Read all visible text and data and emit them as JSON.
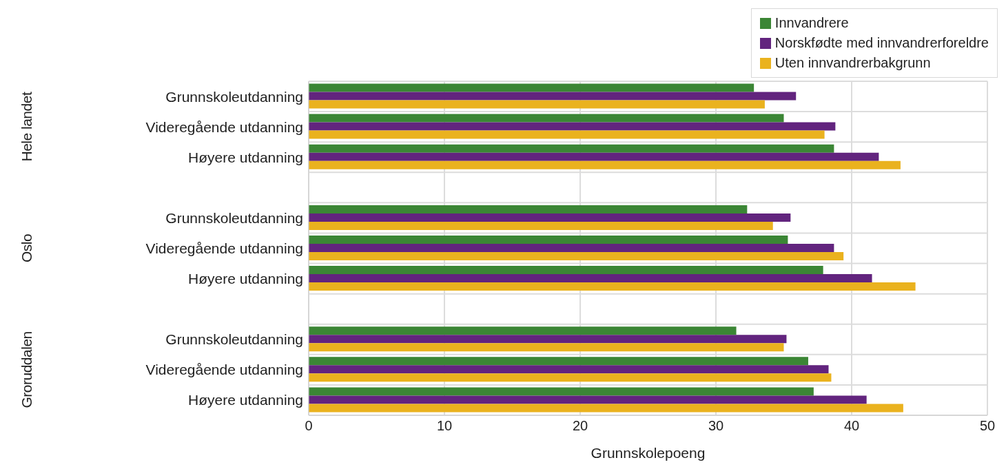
{
  "chart_data": {
    "type": "bar",
    "orientation": "horizontal",
    "xlabel": "Grunnskolepoeng",
    "categories": [
      "Grunnskoleutdanning",
      "Videregående utdanning",
      "Høyere utdanning",
      null,
      "Grunnskoleutdanning",
      "Videregående utdanning",
      "Høyere utdanning",
      null,
      "Grunnskoleutdanning",
      "Videregående utdanning",
      "Høyere utdanning"
    ],
    "series": [
      {
        "name": "Innvandrere",
        "color": "#3b8635",
        "values": [
          32.8,
          35.0,
          38.7,
          null,
          32.3,
          35.3,
          37.9,
          null,
          31.5,
          36.8,
          37.2
        ]
      },
      {
        "name": "Norskfødte med innvandrerforeldre",
        "color": "#62247e",
        "values": [
          35.9,
          38.8,
          42.0,
          null,
          35.5,
          38.7,
          41.5,
          null,
          35.2,
          38.3,
          41.1
        ]
      },
      {
        "name": "Uten innvandrerbakgrunn",
        "color": "#eab21e",
        "values": [
          33.6,
          38.0,
          43.6,
          null,
          34.2,
          39.4,
          44.7,
          null,
          35.0,
          38.5,
          43.8
        ]
      }
    ],
    "annotations": [
      "Hele landet",
      "Oslo",
      "Groruddalen"
    ],
    "xlim": [
      0,
      50
    ],
    "xticks": [
      0,
      10,
      20,
      30,
      40,
      50
    ],
    "grid": true,
    "legend": "top right"
  }
}
